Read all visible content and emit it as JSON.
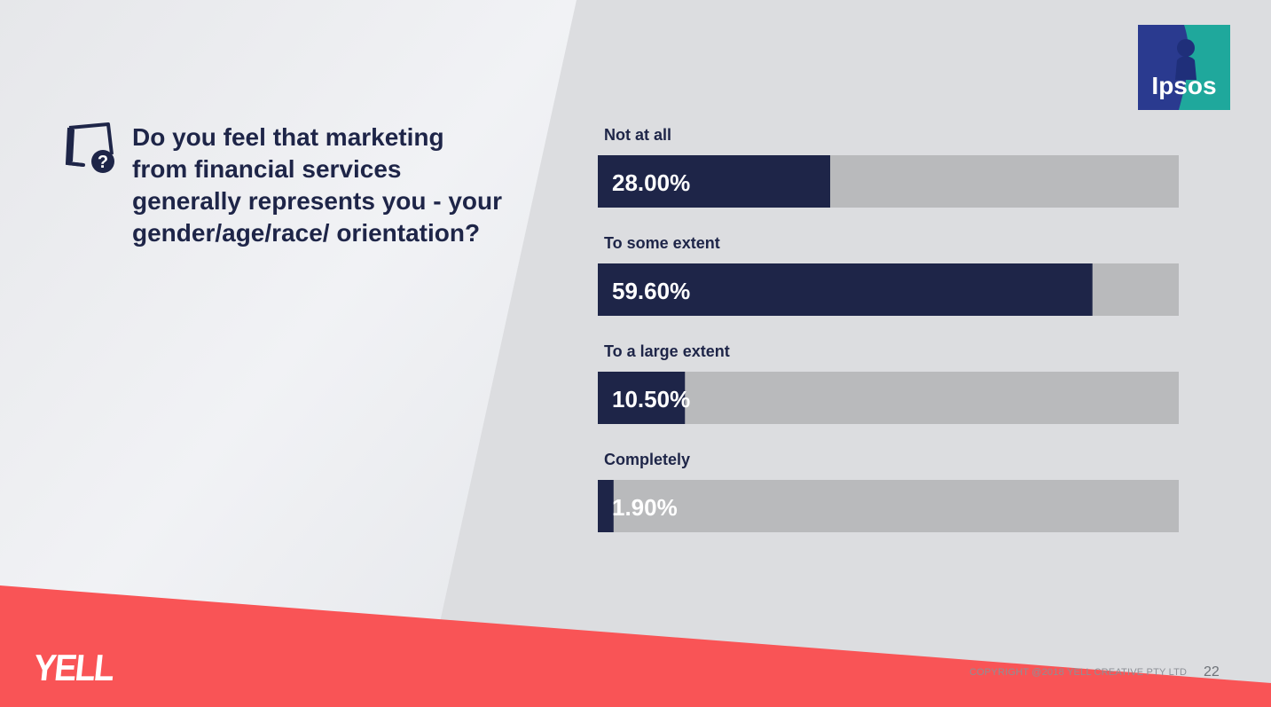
{
  "slide": {
    "question": "Do you feel that marketing from financial services generally represents you - your gender/age/race/ orientation?",
    "logo_text": "Ipsos",
    "brand": "YELL",
    "copyright": "COPYRIGHT @2018 YELL CREATIVE PTY LTD",
    "page_number": "22"
  },
  "colors": {
    "bar_fill": "#1e2548",
    "bar_track": "#b9babc",
    "accent": "#f95456"
  },
  "chart_data": {
    "type": "bar",
    "orientation": "horizontal",
    "categories": [
      "Not at all",
      "To some extent",
      "To a large extent",
      "Completely"
    ],
    "values": [
      28.0,
      59.6,
      10.5,
      1.9
    ],
    "value_labels": [
      "28.00%",
      "59.60%",
      "10.50%",
      "1.90%"
    ],
    "xlim": [
      0,
      70
    ],
    "title": "",
    "xlabel": "",
    "ylabel": "",
    "grid": false,
    "legend": "none"
  }
}
